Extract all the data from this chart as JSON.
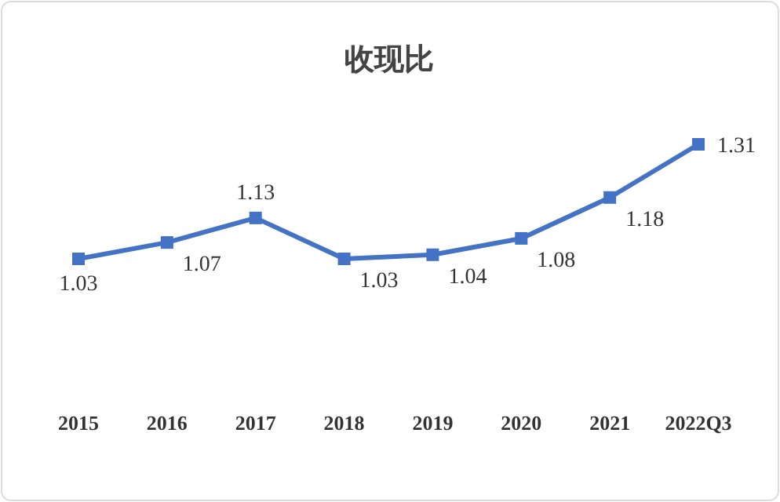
{
  "chart_data": {
    "type": "line",
    "title": "收现比",
    "categories": [
      "2015",
      "2016",
      "2017",
      "2018",
      "2019",
      "2020",
      "2021",
      "2022Q3"
    ],
    "series": [
      {
        "color": "#4472c4",
        "values": [
          1.03,
          1.07,
          1.13,
          1.03,
          1.04,
          1.08,
          1.18,
          1.31
        ]
      }
    ],
    "data_labels": true,
    "marker": "square"
  }
}
